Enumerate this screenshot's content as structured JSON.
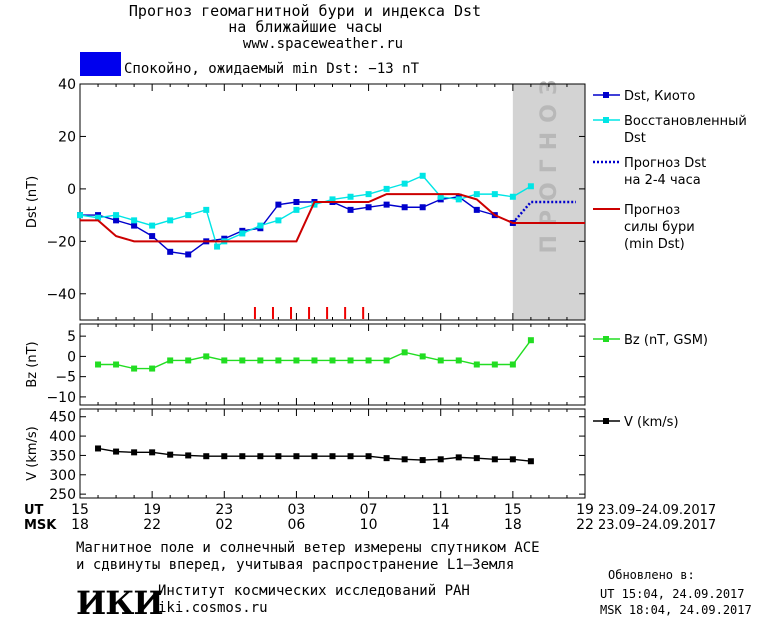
{
  "header": {
    "title_line1": "Прогноз геомагнитной бури и индекса Dst",
    "title_line2": "на ближайшие часы",
    "site": "www.spaceweather.ru"
  },
  "status": {
    "text": "Спокойно, ожидаемый min Dst: −13 nT",
    "box_color": "#0000ee"
  },
  "time_axis": {
    "ut_label": "UT",
    "msk_label": "MSK",
    "ut_ticks": [
      "15",
      "19",
      "23",
      "03",
      "07",
      "11",
      "15",
      "19"
    ],
    "msk_ticks": [
      "18",
      "22",
      "02",
      "06",
      "10",
      "14",
      "18",
      "22"
    ],
    "date_range_ut": "23.09–24.09.2017",
    "date_range_msk": "23.09–24.09.2017"
  },
  "forecast_zone_label": "ПРОГНОЗ",
  "chart_data": [
    {
      "type": "line",
      "ylabel": "Dst (nT)",
      "ylim": [
        -50,
        40
      ],
      "yticks": [
        40,
        20,
        0,
        -20,
        -40
      ],
      "xlim": [
        0,
        28
      ],
      "legend": [
        {
          "label": "Dst, Киото",
          "color": "#0000cc"
        },
        {
          "label": "Восстановленный Dst",
          "color": "#00e5e5"
        },
        {
          "label": "Прогноз Dst на 2-4 часа",
          "color": "#0000cc"
        },
        {
          "label": "Прогноз силы бури (min Dst)",
          "color": "#cc0000"
        }
      ],
      "series": [
        {
          "name": "Dst, Киото",
          "color": "#0000cc",
          "x": [
            0,
            1,
            2,
            3,
            4,
            5,
            6,
            7,
            8,
            9,
            10,
            11,
            12,
            13,
            14,
            15,
            16,
            17,
            18,
            19,
            20,
            21,
            22,
            23,
            24
          ],
          "y": [
            -10,
            -10,
            -12,
            -14,
            -18,
            -24,
            -25,
            -20,
            -19,
            -16,
            -15,
            -6,
            -5,
            -5,
            -5,
            -8,
            -7,
            -6,
            -7,
            -7,
            -4,
            -3,
            -8,
            -10,
            -13
          ]
        },
        {
          "name": "Восстановленный Dst",
          "color": "#00e5e5",
          "x": [
            0,
            1,
            2,
            3,
            4,
            5,
            6,
            7,
            7.6,
            8,
            9,
            10,
            11,
            12,
            13,
            14,
            15,
            16,
            17,
            18,
            19,
            20,
            21,
            22,
            23,
            24,
            25
          ],
          "y": [
            -10,
            -11,
            -10,
            -12,
            -14,
            -12,
            -10,
            -8,
            -22,
            -20,
            -17,
            -14,
            -12,
            -8,
            -6,
            -4,
            -3,
            -2,
            0,
            2,
            5,
            -3,
            -4,
            -2,
            -2,
            -3,
            1
          ]
        },
        {
          "name": "Прогноз Dst на 2-4 часа",
          "color": "#0000cc",
          "dotted": true,
          "x": [
            24,
            25,
            26,
            27.5
          ],
          "y": [
            -13,
            -5,
            -5,
            -5
          ]
        },
        {
          "name": "Прогноз силы бури (min Dst)",
          "color": "#cc0000",
          "x": [
            0,
            1,
            2,
            3,
            4,
            5,
            6,
            7,
            8,
            9,
            10,
            11,
            12,
            13,
            14,
            15,
            16,
            17,
            18,
            19,
            20,
            21,
            22,
            23,
            24,
            25,
            26,
            28
          ],
          "y": [
            -12,
            -12,
            -18,
            -20,
            -20,
            -20,
            -20,
            -20,
            -20,
            -20,
            -20,
            -20,
            -20,
            -5,
            -5,
            -5,
            -5,
            -2,
            -2,
            -2,
            -2,
            -2,
            -4,
            -10,
            -13,
            -13,
            -13,
            -13
          ]
        }
      ],
      "storm_markers_x": [
        9.7,
        10.7,
        11.7,
        12.7,
        13.7,
        14.7,
        15.7
      ],
      "forecast_zone_x": [
        24,
        28
      ]
    },
    {
      "type": "line",
      "ylabel": "Bz (nT)",
      "ylim": [
        -12,
        8
      ],
      "yticks": [
        5,
        0,
        -5,
        -10
      ],
      "xlim": [
        0,
        28
      ],
      "legend": [
        {
          "label": "Bz (nT, GSM)",
          "color": "#22dd22"
        }
      ],
      "series": [
        {
          "name": "Bz (nT, GSM)",
          "color": "#22dd22",
          "x": [
            1,
            2,
            3,
            4,
            5,
            6,
            7,
            8,
            9,
            10,
            11,
            12,
            13,
            14,
            15,
            16,
            17,
            18,
            19,
            20,
            21,
            22,
            23,
            24,
            25
          ],
          "y": [
            -2,
            -2,
            -3,
            -3,
            -1,
            -1,
            0,
            -1,
            -1,
            -1,
            -1,
            -1,
            -1,
            -1,
            -1,
            -1,
            -1,
            1,
            0,
            -1,
            -1,
            -2,
            -2,
            -2,
            4
          ]
        }
      ]
    },
    {
      "type": "line",
      "ylabel": "V (km/s)",
      "ylim": [
        240,
        470
      ],
      "yticks": [
        450,
        400,
        350,
        300,
        250
      ],
      "xlim": [
        0,
        28
      ],
      "legend": [
        {
          "label": "V (km/s)",
          "color": "#000000"
        }
      ],
      "series": [
        {
          "name": "V (km/s)",
          "color": "#000000",
          "x": [
            1,
            2,
            3,
            4,
            5,
            6,
            7,
            8,
            9,
            10,
            11,
            12,
            13,
            14,
            15,
            16,
            17,
            18,
            19,
            20,
            21,
            22,
            23,
            24,
            25
          ],
          "y": [
            368,
            360,
            358,
            358,
            352,
            350,
            348,
            348,
            348,
            348,
            348,
            348,
            348,
            348,
            348,
            348,
            343,
            340,
            338,
            340,
            345,
            343,
            340,
            340,
            335
          ]
        }
      ]
    }
  ],
  "footer": {
    "note_line1": "Магнитное поле и солнечный ветер измерены спутником ACE",
    "note_line2": "и сдвинуты вперед, учитывая распространение L1–Земля",
    "logo_text": "ИКИ",
    "institute": "Институт космических исследований РАН",
    "institute_site": "iki.cosmos.ru",
    "updated_label": "Обновлено в:",
    "updated_ut": "UT   15:04, 24.09.2017",
    "updated_msk": "MSK 18:04, 24.09.2017"
  }
}
